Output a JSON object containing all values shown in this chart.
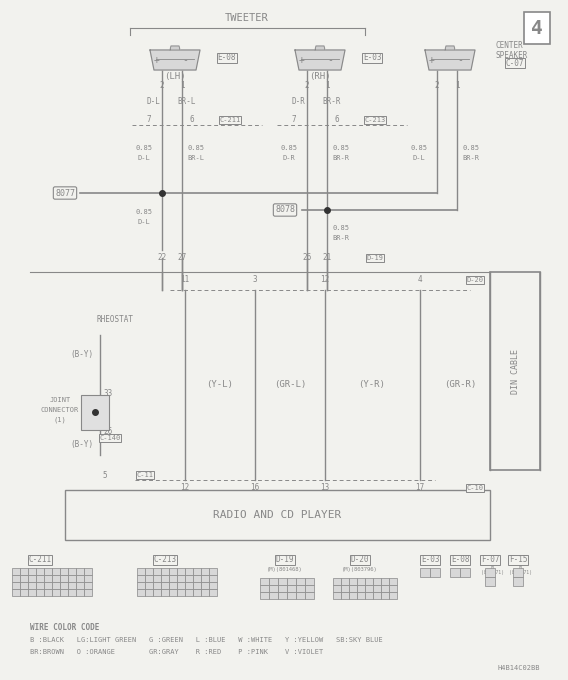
{
  "bg_color": "#f2f2ee",
  "line_color": "#888888",
  "text_color": "#888888",
  "page_num": "4",
  "tweeter_label": "TWEETER",
  "lh_label": "(LH)",
  "rh_label": "(RH)",
  "center_label": "CENTER\nSPEAKER",
  "e08": "E-08",
  "e03": "E-03",
  "c07": "C-07",
  "c211": "C-211",
  "c213": "C-213",
  "d19": "D-19",
  "d20": "D-20",
  "j8077": "8077",
  "j8078": "8078",
  "rheostat": "RHEOSTAT",
  "joint_conn": "JOINT\nCONNECTOR\n(1)",
  "c140": "C-140",
  "c11": "C-11",
  "c10": "C-10",
  "radio_label": "RADIO AND CD PLAYER",
  "din_label": "DIN CABLE",
  "footnote": "H4B14C02BB",
  "wire_color_title": "WIRE COLOR CODE",
  "wire_color_line1": "B :BLACK   LG:LIGHT GREEN   G :GREEN   L :BLUE   W :WHITE   Y :YELLOW   SB:SKY BLUE",
  "wire_color_line2": "BR:BROWN   O :ORANGE        GR:GRAY    R :RED    P :PINK    V :VIOLET"
}
